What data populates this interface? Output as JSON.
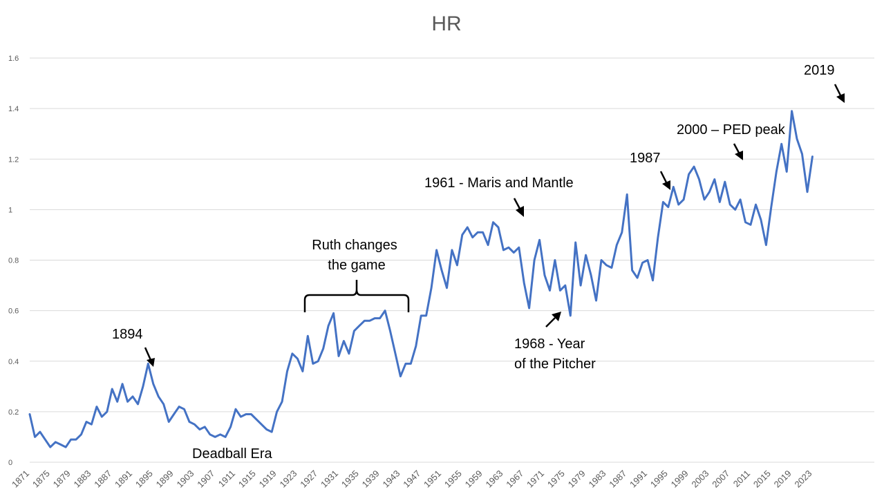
{
  "chart_data": {
    "type": "line",
    "title": "HR",
    "xlabel": "",
    "ylabel": "",
    "ylim": [
      0,
      1.6
    ],
    "yticks": [
      "0",
      "0.2",
      "0.4",
      "0.6",
      "0.8",
      "1",
      "1.2",
      "1.4",
      "1.6"
    ],
    "grid": true,
    "legend": "none",
    "series_color": "#4472c4",
    "xticks": [
      "1871",
      "1875",
      "1879",
      "1883",
      "1887",
      "1891",
      "1895",
      "1899",
      "1903",
      "1907",
      "1911",
      "1915",
      "1919",
      "1923",
      "1927",
      "1931",
      "1935",
      "1939",
      "1943",
      "1947",
      "1951",
      "1955",
      "1959",
      "1963",
      "1967",
      "1971",
      "1975",
      "1979",
      "1983",
      "1987",
      "1991",
      "1995",
      "1999",
      "2003",
      "2007",
      "2011",
      "2015",
      "2019",
      "2023"
    ],
    "x_start": 1871,
    "values": [
      0.19,
      0.1,
      0.12,
      0.09,
      0.06,
      0.08,
      0.07,
      0.06,
      0.09,
      0.09,
      0.11,
      0.16,
      0.15,
      0.22,
      0.18,
      0.2,
      0.29,
      0.24,
      0.31,
      0.24,
      0.26,
      0.23,
      0.3,
      0.39,
      0.31,
      0.26,
      0.23,
      0.16,
      0.19,
      0.22,
      0.21,
      0.16,
      0.15,
      0.13,
      0.14,
      0.11,
      0.1,
      0.11,
      0.1,
      0.14,
      0.21,
      0.18,
      0.19,
      0.19,
      0.17,
      0.15,
      0.13,
      0.12,
      0.2,
      0.24,
      0.36,
      0.43,
      0.41,
      0.36,
      0.5,
      0.39,
      0.4,
      0.45,
      0.54,
      0.59,
      0.42,
      0.48,
      0.43,
      0.52,
      0.54,
      0.56,
      0.56,
      0.57,
      0.57,
      0.6,
      0.52,
      0.43,
      0.34,
      0.39,
      0.39,
      0.46,
      0.58,
      0.58,
      0.69,
      0.84,
      0.76,
      0.69,
      0.84,
      0.78,
      0.9,
      0.93,
      0.89,
      0.91,
      0.91,
      0.86,
      0.95,
      0.93,
      0.84,
      0.85,
      0.83,
      0.85,
      0.71,
      0.61,
      0.8,
      0.88,
      0.74,
      0.68,
      0.8,
      0.68,
      0.7,
      0.58,
      0.87,
      0.7,
      0.82,
      0.74,
      0.64,
      0.8,
      0.78,
      0.77,
      0.86,
      0.91,
      1.06,
      0.76,
      0.73,
      0.79,
      0.8,
      0.72,
      0.89,
      1.03,
      1.01,
      1.09,
      1.02,
      1.04,
      1.14,
      1.17,
      1.12,
      1.04,
      1.07,
      1.12,
      1.03,
      1.11,
      1.02,
      1.0,
      1.04,
      0.95,
      0.94,
      1.02,
      0.96,
      0.86,
      1.01,
      1.15,
      1.26,
      1.15,
      1.39,
      1.28,
      1.22,
      1.07,
      1.21
    ],
    "annotations": {
      "a1894": "1894",
      "deadball": "Deadball Era",
      "ruth_line1": "Ruth changes",
      "ruth_line2": "the game",
      "a1961": "1961 - Maris and Mantle",
      "a1968_line1": "1968 - Year",
      "a1968_line2": "of the Pitcher",
      "a1987": "1987",
      "a2000": "2000 – PED peak",
      "a2019": "2019"
    }
  }
}
